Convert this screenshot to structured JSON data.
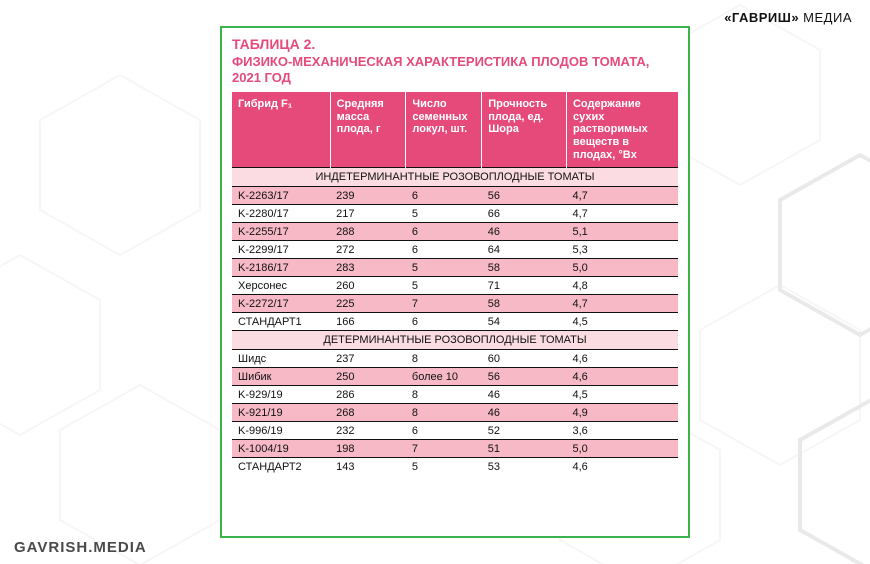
{
  "brand": {
    "top_bold": "«ГАВРИШ»",
    "top_rest": " МЕДИА",
    "bottom": "GAVRISH.MEDIA"
  },
  "table": {
    "title_line1": "ТАБЛИЦА 2.",
    "title_line2": "ФИЗИКО-МЕХАНИЧЕСКАЯ ХАРАКТЕРИСТИКА ПЛОДОВ ТОМАТА, 2021 ГОД",
    "columns": [
      "Гибрид F₁",
      "Средняя масса плода, г",
      "Число семенных локул, шт.",
      "Прочность плода, ед. Шора",
      "Содержание сухих растворимых веществ в плодах, °Bx"
    ],
    "section1": "ИНДЕТЕРМИНАНТНЫЕ РОЗОВОПЛОДНЫЕ ТОМАТЫ",
    "rows1": [
      {
        "c": [
          "K-2263/17",
          "239",
          "6",
          "56",
          "4,7"
        ],
        "pink": true
      },
      {
        "c": [
          "K-2280/17",
          "217",
          "5",
          "66",
          "4,7"
        ],
        "pink": false
      },
      {
        "c": [
          "K-2255/17",
          "288",
          "6",
          "46",
          "5,1"
        ],
        "pink": true
      },
      {
        "c": [
          "K-2299/17",
          "272",
          "6",
          "64",
          "5,3"
        ],
        "pink": false
      },
      {
        "c": [
          "K-2186/17",
          "283",
          "5",
          "58",
          "5,0"
        ],
        "pink": true
      },
      {
        "c": [
          "Херсонес",
          "260",
          "5",
          "71",
          "4,8"
        ],
        "pink": false
      },
      {
        "c": [
          "K-2272/17",
          "225",
          "7",
          "58",
          "4,7"
        ],
        "pink": true
      },
      {
        "c": [
          "СТАНДАРТ1",
          "166",
          "6",
          "54",
          "4,5"
        ],
        "pink": false
      }
    ],
    "section2": "ДЕТЕРМИНАНТНЫЕ РОЗОВОПЛОДНЫЕ ТОМАТЫ",
    "rows2": [
      {
        "c": [
          "Шидс",
          "237",
          "8",
          "60",
          "4,6"
        ],
        "pink": false
      },
      {
        "c": [
          "Шибик",
          "250",
          "более 10",
          "56",
          "4,6"
        ],
        "pink": true
      },
      {
        "c": [
          "K-929/19",
          "286",
          "8",
          "46",
          "4,5"
        ],
        "pink": false
      },
      {
        "c": [
          "K-921/19",
          "268",
          "8",
          "46",
          "4,9"
        ],
        "pink": true
      },
      {
        "c": [
          "K-996/19",
          "232",
          "6",
          "52",
          "3,6"
        ],
        "pink": false
      },
      {
        "c": [
          "K-1004/19",
          "198",
          "7",
          "51",
          "5,0"
        ],
        "pink": true
      },
      {
        "c": [
          "СТАНДАРТ2",
          "143",
          "5",
          "53",
          "4,6"
        ],
        "pink": false
      }
    ]
  },
  "style": {
    "accent": "#e54a7b",
    "frame_border": "#3bb24a",
    "row_pink": "#f6b9c5",
    "row_light": "#fbdce3",
    "hex_stroke_light": "#d0d0d0",
    "hex_stroke_dark": "#7a7a7a"
  }
}
